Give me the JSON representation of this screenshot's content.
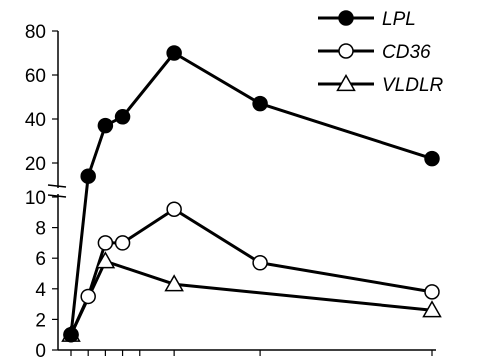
{
  "chart_data": {
    "type": "line",
    "title": "",
    "xlabel": "",
    "ylabel": "",
    "x": [
      0,
      1,
      2,
      3,
      4,
      6,
      11,
      21
    ],
    "axis_break": {
      "lower_range": [
        0,
        10
      ],
      "upper_range": [
        10,
        80
      ]
    },
    "lower_ticks": [
      0,
      2,
      4,
      6,
      8,
      10
    ],
    "upper_ticks": [
      20,
      40,
      60,
      80
    ],
    "legend_position": "top-right",
    "series": [
      {
        "name": "LPL",
        "marker": "filled-circle",
        "color": "#000000",
        "x": [
          0,
          1,
          2,
          3,
          6,
          11,
          21
        ],
        "y": [
          1,
          14,
          37,
          41,
          70,
          47,
          22
        ]
      },
      {
        "name": "CD36",
        "marker": "open-circle",
        "color": "#000000",
        "x": [
          0,
          1,
          2,
          3,
          6,
          11,
          21
        ],
        "y": [
          1,
          3.5,
          7,
          7,
          9.2,
          5.7,
          3.8
        ]
      },
      {
        "name": "VLDLR",
        "marker": "open-triangle",
        "color": "#000000",
        "x": [
          0,
          2,
          6,
          21
        ],
        "y": [
          1,
          5.8,
          4.3,
          2.6
        ]
      }
    ]
  }
}
